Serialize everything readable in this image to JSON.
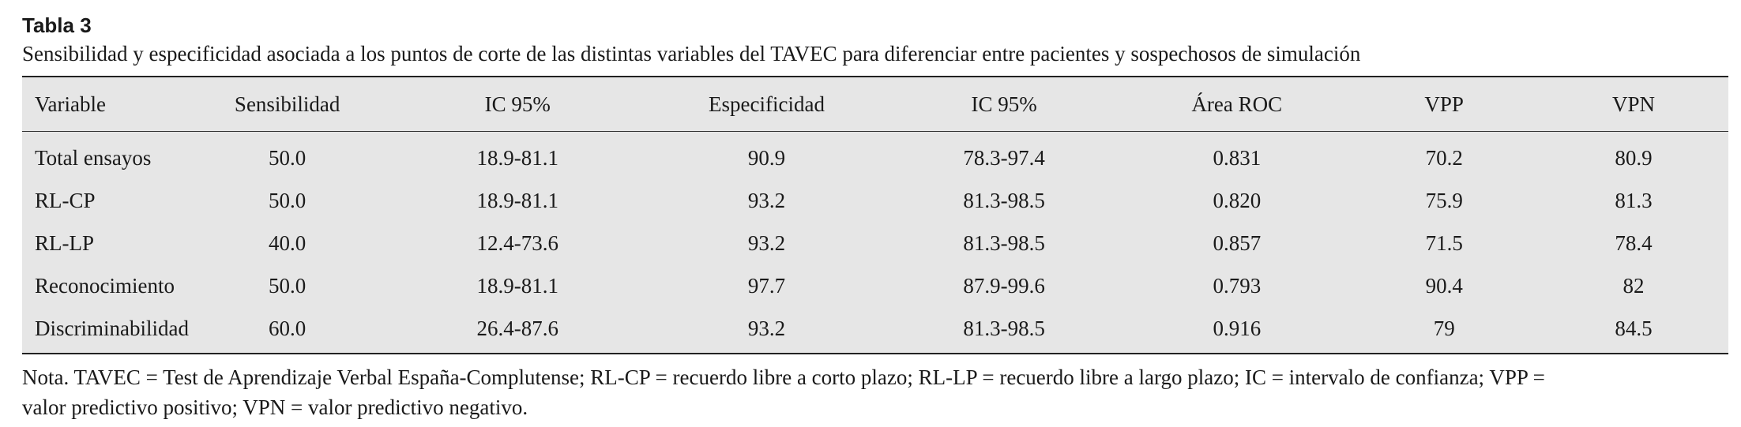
{
  "table_label": "Tabla 3",
  "caption": "Sensibilidad y especificidad asociada a los puntos de corte de las distintas variables del TAVEC para diferenciar entre pacientes y sospechosos de simulación",
  "columns": [
    "Variable",
    "Sensibilidad",
    "IC 95%",
    "Especificidad",
    "IC 95%",
    "Área ROC",
    "VPP",
    "VPN"
  ],
  "rows": [
    [
      "Total ensayos",
      "50.0",
      "18.9-81.1",
      "90.9",
      "78.3-97.4",
      "0.831",
      "70.2",
      "80.9"
    ],
    [
      "RL-CP",
      "50.0",
      "18.9-81.1",
      "93.2",
      "81.3-98.5",
      "0.820",
      "75.9",
      "81.3"
    ],
    [
      "RL-LP",
      "40.0",
      "12.4-73.6",
      "93.2",
      "81.3-98.5",
      "0.857",
      "71.5",
      "78.4"
    ],
    [
      "Reconocimiento",
      "50.0",
      "18.9-81.1",
      "97.7",
      "87.9-99.6",
      "0.793",
      "90.4",
      "82"
    ],
    [
      "Discriminabilidad",
      "60.0",
      "26.4-87.6",
      "93.2",
      "81.3-98.5",
      "0.916",
      "79",
      "84.5"
    ]
  ],
  "note_line1": "Nota. TAVEC = Test de Aprendizaje Verbal España-Complutense; RL-CP = recuerdo libre a corto plazo; RL-LP = recuerdo libre a largo plazo; IC = intervalo de confianza; VPP =",
  "note_line2": "valor predictivo positivo; VPN = valor predictivo negativo."
}
